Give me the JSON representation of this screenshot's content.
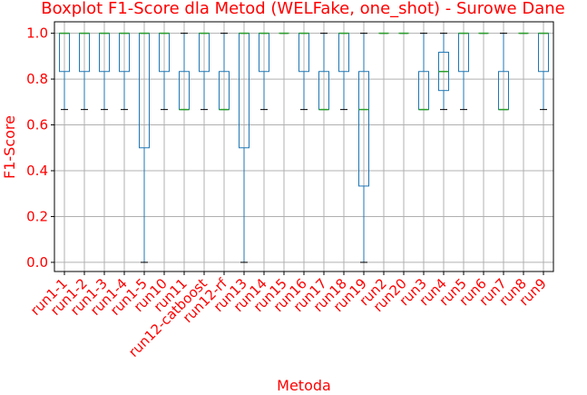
{
  "chart_data": {
    "type": "boxplot",
    "title": "Boxplot F1-Score dla Metod (WELFake, one_shot) - Surowe Dane",
    "xlabel": "Metoda",
    "ylabel": "F1-Score",
    "ylim": [
      -0.04,
      1.05
    ],
    "yticks": [
      "0.0",
      "0.2",
      "0.4",
      "0.6",
      "0.8",
      "1.0"
    ],
    "grid": true,
    "colors": {
      "text": "#ff0000",
      "box": "#1f77b4",
      "median": "#2ca02c",
      "grid": "#b0b0b0"
    },
    "categories": [
      "run1-1",
      "run1-2",
      "run1-3",
      "run1-4",
      "run1-5",
      "run10",
      "run11",
      "run12-catboost",
      "run12-rf",
      "run13",
      "run14",
      "run15",
      "run16",
      "run17",
      "run18",
      "run19",
      "run2",
      "run20",
      "run3",
      "run4",
      "run5",
      "run6",
      "run7",
      "run8",
      "run9"
    ],
    "boxes": [
      {
        "whislo": 0.667,
        "q1": 0.833,
        "med": 1.0,
        "q3": 1.0,
        "whishi": 1.0
      },
      {
        "whislo": 0.667,
        "q1": 0.833,
        "med": 1.0,
        "q3": 1.0,
        "whishi": 1.0
      },
      {
        "whislo": 0.667,
        "q1": 0.833,
        "med": 1.0,
        "q3": 1.0,
        "whishi": 1.0
      },
      {
        "whislo": 0.667,
        "q1": 0.833,
        "med": 1.0,
        "q3": 1.0,
        "whishi": 1.0
      },
      {
        "whislo": 0.0,
        "q1": 0.5,
        "med": 1.0,
        "q3": 1.0,
        "whishi": 1.0
      },
      {
        "whislo": 0.667,
        "q1": 0.833,
        "med": 1.0,
        "q3": 1.0,
        "whishi": 1.0
      },
      {
        "whislo": 0.667,
        "q1": 0.667,
        "med": 0.667,
        "q3": 0.833,
        "whishi": 1.0
      },
      {
        "whislo": 0.667,
        "q1": 0.833,
        "med": 1.0,
        "q3": 1.0,
        "whishi": 1.0
      },
      {
        "whislo": 0.667,
        "q1": 0.667,
        "med": 0.667,
        "q3": 0.833,
        "whishi": 1.0
      },
      {
        "whislo": 0.0,
        "q1": 0.5,
        "med": 1.0,
        "q3": 1.0,
        "whishi": 1.0
      },
      {
        "whislo": 0.667,
        "q1": 0.833,
        "med": 1.0,
        "q3": 1.0,
        "whishi": 1.0
      },
      {
        "whislo": 1.0,
        "q1": 1.0,
        "med": 1.0,
        "q3": 1.0,
        "whishi": 1.0
      },
      {
        "whislo": 0.667,
        "q1": 0.833,
        "med": 1.0,
        "q3": 1.0,
        "whishi": 1.0
      },
      {
        "whislo": 0.667,
        "q1": 0.667,
        "med": 0.667,
        "q3": 0.833,
        "whishi": 1.0
      },
      {
        "whislo": 0.667,
        "q1": 0.833,
        "med": 1.0,
        "q3": 1.0,
        "whishi": 1.0
      },
      {
        "whislo": 0.0,
        "q1": 0.333,
        "med": 0.667,
        "q3": 0.833,
        "whishi": 1.0
      },
      {
        "whislo": 1.0,
        "q1": 1.0,
        "med": 1.0,
        "q3": 1.0,
        "whishi": 1.0
      },
      {
        "whislo": 1.0,
        "q1": 1.0,
        "med": 1.0,
        "q3": 1.0,
        "whishi": 1.0
      },
      {
        "whislo": 0.667,
        "q1": 0.667,
        "med": 0.667,
        "q3": 0.833,
        "whishi": 1.0
      },
      {
        "whislo": 0.667,
        "q1": 0.75,
        "med": 0.833,
        "q3": 0.917,
        "whishi": 1.0
      },
      {
        "whislo": 0.667,
        "q1": 0.833,
        "med": 1.0,
        "q3": 1.0,
        "whishi": 1.0
      },
      {
        "whislo": 1.0,
        "q1": 1.0,
        "med": 1.0,
        "q3": 1.0,
        "whishi": 1.0
      },
      {
        "whislo": 0.667,
        "q1": 0.667,
        "med": 0.667,
        "q3": 0.833,
        "whishi": 1.0
      },
      {
        "whislo": 1.0,
        "q1": 1.0,
        "med": 1.0,
        "q3": 1.0,
        "whishi": 1.0
      },
      {
        "whislo": 0.667,
        "q1": 0.833,
        "med": 1.0,
        "q3": 1.0,
        "whishi": 1.0
      }
    ]
  }
}
